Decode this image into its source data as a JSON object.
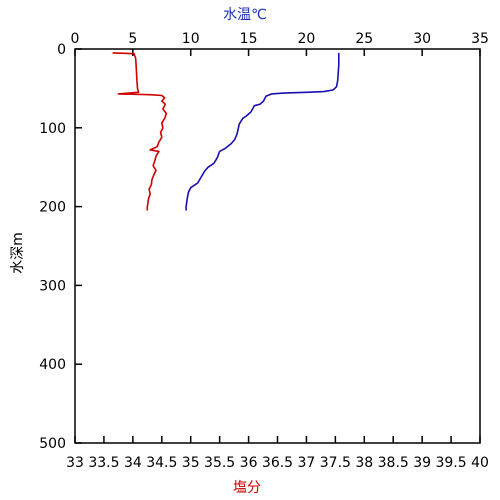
{
  "chart_data": {
    "type": "line",
    "y_axis": {
      "label": "水深m",
      "range": [
        0,
        500
      ],
      "inverted": true,
      "ticks": [
        0,
        100,
        200,
        300,
        400,
        500
      ]
    },
    "top_axis": {
      "label": "水温℃",
      "color": "#1a2fb3",
      "range": [
        0,
        35
      ],
      "ticks": [
        0,
        5,
        10,
        15,
        20,
        25,
        30,
        35
      ]
    },
    "bottom_axis": {
      "label": "塩分",
      "color": "#cc0000",
      "range": [
        33,
        40
      ],
      "ticks": [
        33,
        33.5,
        34,
        34.5,
        35,
        35.5,
        36,
        36.5,
        37,
        37.5,
        38,
        38.5,
        39,
        39.5,
        40
      ]
    },
    "grid": false,
    "series": [
      {
        "axis": "top",
        "color": "#1a0fb0",
        "points": [
          [
            22.8,
            5
          ],
          [
            22.8,
            20
          ],
          [
            22.7,
            40
          ],
          [
            22.6,
            48
          ],
          [
            22.3,
            52
          ],
          [
            21.5,
            54
          ],
          [
            20.0,
            55
          ],
          [
            18.0,
            56
          ],
          [
            17.0,
            57
          ],
          [
            16.5,
            60
          ],
          [
            16.3,
            66
          ],
          [
            16.0,
            70
          ],
          [
            15.5,
            72
          ],
          [
            15.2,
            80
          ],
          [
            14.8,
            85
          ],
          [
            14.5,
            88
          ],
          [
            14.2,
            95
          ],
          [
            14.0,
            108
          ],
          [
            13.8,
            115
          ],
          [
            13.5,
            120
          ],
          [
            13.0,
            126
          ],
          [
            12.5,
            130
          ],
          [
            12.3,
            138
          ],
          [
            12.0,
            145
          ],
          [
            11.5,
            150
          ],
          [
            11.2,
            155
          ],
          [
            11.0,
            160
          ],
          [
            10.8,
            165
          ],
          [
            10.6,
            170
          ],
          [
            10.3,
            173
          ],
          [
            10.0,
            176
          ],
          [
            9.8,
            182
          ],
          [
            9.7,
            190
          ],
          [
            9.6,
            200
          ],
          [
            9.6,
            205
          ]
        ]
      },
      {
        "axis": "bottom",
        "color": "#d00000",
        "points": [
          [
            33.65,
            5
          ],
          [
            34.02,
            6
          ],
          [
            34.05,
            12
          ],
          [
            34.06,
            25
          ],
          [
            34.07,
            40
          ],
          [
            34.08,
            50
          ],
          [
            34.1,
            55
          ],
          [
            33.75,
            57
          ],
          [
            34.3,
            58
          ],
          [
            34.5,
            59
          ],
          [
            34.55,
            62
          ],
          [
            34.5,
            66
          ],
          [
            34.56,
            70
          ],
          [
            34.52,
            76
          ],
          [
            34.58,
            82
          ],
          [
            34.55,
            88
          ],
          [
            34.5,
            94
          ],
          [
            34.52,
            100
          ],
          [
            34.48,
            106
          ],
          [
            34.5,
            112
          ],
          [
            34.45,
            118
          ],
          [
            34.42,
            124
          ],
          [
            34.3,
            128
          ],
          [
            34.45,
            130
          ],
          [
            34.4,
            136
          ],
          [
            34.38,
            142
          ],
          [
            34.35,
            148
          ],
          [
            34.4,
            154
          ],
          [
            34.36,
            160
          ],
          [
            34.33,
            166
          ],
          [
            34.32,
            172
          ],
          [
            34.28,
            178
          ],
          [
            34.3,
            184
          ],
          [
            34.27,
            190
          ],
          [
            34.26,
            196
          ],
          [
            34.25,
            200
          ],
          [
            34.25,
            205
          ]
        ]
      }
    ]
  }
}
